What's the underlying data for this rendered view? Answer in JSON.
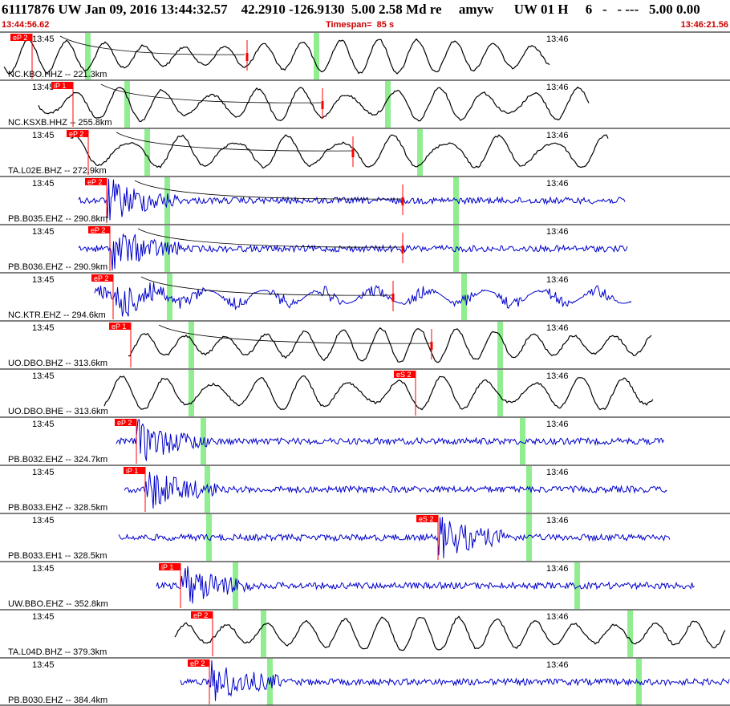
{
  "header": {
    "title": "61117876 UW Jan 09, 2016 13:44:32.57    42.2910 -126.9130  5.00 2.58 Md re     amyw      UW 01 H     6   -   - ---   5.00 0.00",
    "start_time": "13:44:56.62",
    "timespan": "Timespan=  85 s",
    "end_time": "13:46:21.56"
  },
  "colors": {
    "background": "#ffffff",
    "panel_border": "#000000",
    "trace_black": "#000000",
    "trace_blue": "#0000cc",
    "pick": "#ff0000",
    "green_window": "#90ee90",
    "header_red": "#cc0000"
  },
  "tick_labels": {
    "left": "13:45",
    "right": "13:46"
  },
  "traces": [
    {
      "label": "NC.KBO.HHZ -- 221.3km",
      "pick": "eP 2",
      "color": "black",
      "amp": "large"
    },
    {
      "label": "NC.KSXB.HHZ -- 255.8km",
      "pick": "iP 1",
      "color": "black",
      "amp": "large"
    },
    {
      "label": "TA.L02E.BHZ -- 272.9km",
      "pick": "eP 2",
      "color": "black",
      "amp": "large"
    },
    {
      "label": "PB.B035.EHZ -- 290.8km",
      "pick": "eP 2",
      "color": "blue",
      "amp": "noisy"
    },
    {
      "label": "PB.B036.EHZ -- 290.9km",
      "pick": "eP 2",
      "color": "blue",
      "amp": "noisy"
    },
    {
      "label": "NC.KTR.EHZ -- 294.6km",
      "pick": "eP 2",
      "color": "blue",
      "amp": "mixed"
    },
    {
      "label": "UO.DBO.BHZ -- 313.6km",
      "pick": "eP 1",
      "color": "black",
      "amp": "large"
    },
    {
      "label": "UO.DBO.BHE -- 313.6km",
      "pick": "eS 2",
      "color": "black",
      "amp": "large"
    },
    {
      "label": "PB.B032.EHZ -- 324.7km",
      "pick": "eP 2",
      "color": "blue",
      "amp": "noisy"
    },
    {
      "label": "PB.B033.EHZ -- 328.5km",
      "pick": "iP 1",
      "color": "blue",
      "amp": "noisy"
    },
    {
      "label": "PB.B033.EH1 -- 328.5km",
      "pick": "eS 2",
      "color": "blue",
      "amp": "noisy"
    },
    {
      "label": "UW.BBO.EHZ -- 352.8km",
      "pick": "iP 1",
      "color": "blue",
      "amp": "noisy"
    },
    {
      "label": "TA.L04D.BHZ -- 379.3km",
      "pick": "eP 2",
      "color": "black",
      "amp": "large"
    },
    {
      "label": "PB.B030.EHZ -- 384.4km",
      "pick": "eP 2",
      "color": "blue",
      "amp": "noisy"
    }
  ]
}
